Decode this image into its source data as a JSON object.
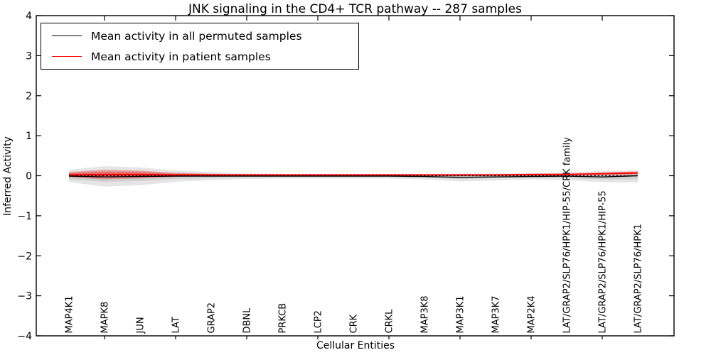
{
  "chart_data": {
    "type": "line",
    "title": "JNK signaling in the CD4+ TCR pathway -- 287 samples",
    "xlabel": "Cellular Entities",
    "ylabel": "Inferred Activity",
    "ylim": [
      -4,
      4
    ],
    "ytick_values": [
      4,
      3,
      2,
      1,
      0,
      -1,
      -2,
      -3,
      -4
    ],
    "ytick_labels": [
      "4",
      "3",
      "2",
      "1",
      "0",
      "−1",
      "−2",
      "−3",
      "−4"
    ],
    "xtick_positions": [
      1,
      3,
      5,
      7,
      9,
      11,
      13,
      15
    ],
    "grid": false,
    "legend_position": "upper left",
    "categories": [
      "MAP4K1",
      "MAPK8",
      "JUN",
      "LAT",
      "GRAP2",
      "DBNL",
      "PRKCB",
      "LCP2",
      "CRK",
      "CRKL",
      "MAP3K8",
      "MAP3K1",
      "MAP3K7",
      "MAP2K4",
      "LAT/GRAP2/SLP76/HPK1/HIP-55/CRK family",
      "LAT/GRAP2/SLP76/HPK1/HIP-55",
      "LAT/GRAP2/SLP76/HPK1"
    ],
    "series": [
      {
        "name": "Mean activity in all permuted samples",
        "color": "#000000",
        "style": "solid",
        "values": [
          -0.01,
          -0.03,
          -0.02,
          -0.01,
          -0.01,
          -0.01,
          -0.01,
          -0.01,
          -0.01,
          -0.01,
          -0.02,
          -0.04,
          -0.03,
          -0.02,
          -0.01,
          -0.03,
          0.0
        ]
      },
      {
        "name": "Mean activity in patient samples",
        "color": "#ff0000",
        "style": "solid",
        "values": [
          0.02,
          0.03,
          0.03,
          0.02,
          0.02,
          0.02,
          0.02,
          0.02,
          0.02,
          0.02,
          0.02,
          0.02,
          0.02,
          0.03,
          0.03,
          0.05,
          0.07
        ]
      }
    ],
    "reference_line": {
      "y": 0,
      "color": "#000000",
      "style": "dotted"
    },
    "bands": [
      {
        "name": "permuted-band-outer",
        "color": "rgba(0,0,0,0.10)",
        "upper": [
          0.15,
          0.24,
          0.21,
          0.13,
          0.09,
          0.06,
          0.05,
          0.05,
          0.05,
          0.05,
          0.05,
          0.06,
          0.06,
          0.06,
          0.08,
          0.12,
          0.13
        ],
        "lower": [
          -0.16,
          -0.27,
          -0.24,
          -0.15,
          -0.11,
          -0.08,
          -0.07,
          -0.07,
          -0.07,
          -0.07,
          -0.09,
          -0.14,
          -0.12,
          -0.09,
          -0.11,
          -0.16,
          -0.17
        ]
      },
      {
        "name": "permuted-band-inner",
        "color": "rgba(0,0,0,0.09)",
        "upper": [
          0.08,
          0.13,
          0.11,
          0.07,
          0.05,
          0.04,
          0.03,
          0.03,
          0.03,
          0.03,
          0.03,
          0.04,
          0.04,
          0.04,
          0.05,
          0.07,
          0.07
        ],
        "lower": [
          -0.09,
          -0.15,
          -0.13,
          -0.08,
          -0.06,
          -0.04,
          -0.04,
          -0.04,
          -0.04,
          -0.04,
          -0.05,
          -0.08,
          -0.06,
          -0.05,
          -0.06,
          -0.09,
          -0.09
        ]
      },
      {
        "name": "patient-band-outer",
        "color": "rgba(255,0,0,0.28)",
        "upper": [
          0.09,
          0.15,
          0.13,
          0.07,
          0.05,
          0.04,
          0.04,
          0.04,
          0.04,
          0.04,
          0.04,
          0.04,
          0.04,
          0.05,
          0.06,
          0.08,
          0.11
        ],
        "lower": [
          -0.04,
          -0.09,
          -0.07,
          -0.03,
          -0.01,
          0.0,
          0.0,
          0.0,
          0.0,
          0.0,
          0.0,
          -0.01,
          0.0,
          0.0,
          0.01,
          0.02,
          0.03
        ]
      },
      {
        "name": "patient-band-inner",
        "color": "rgba(255,0,0,0.32)",
        "upper": [
          0.06,
          0.09,
          0.08,
          0.05,
          0.04,
          0.03,
          0.03,
          0.03,
          0.03,
          0.03,
          0.03,
          0.03,
          0.03,
          0.04,
          0.04,
          0.06,
          0.09
        ],
        "lower": [
          -0.01,
          -0.04,
          -0.03,
          -0.01,
          0.0,
          0.01,
          0.01,
          0.01,
          0.01,
          0.01,
          0.01,
          0.0,
          0.01,
          0.01,
          0.02,
          0.03,
          0.05
        ]
      }
    ]
  }
}
